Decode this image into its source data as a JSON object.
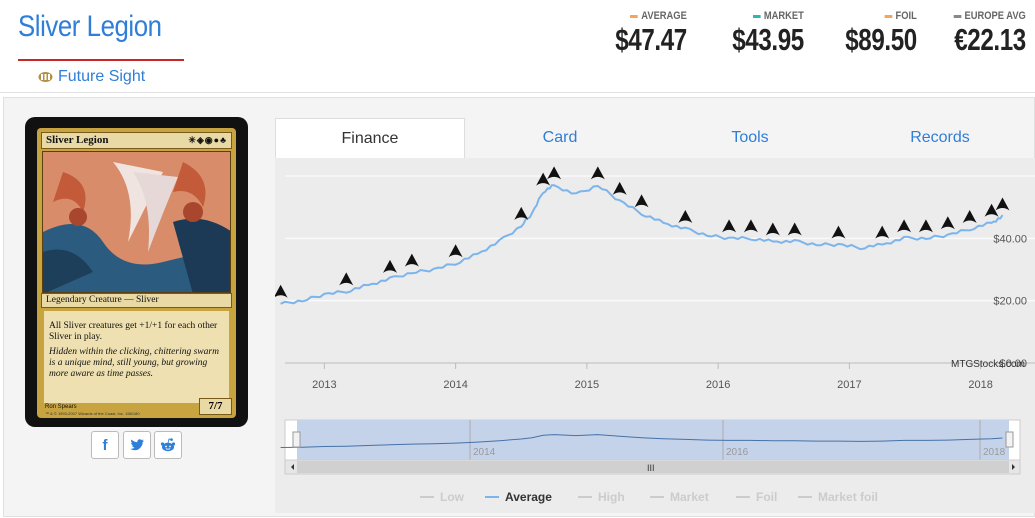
{
  "header": {
    "title": "Sliver Legion",
    "set_name": "Future Sight"
  },
  "prices": [
    {
      "label": "AVERAGE",
      "value": "$47.47",
      "color": "#f7a35c"
    },
    {
      "label": "MARKET",
      "value": "$43.95",
      "color": "#2ab7b7"
    },
    {
      "label": "FOIL",
      "value": "$89.50",
      "color": "#f7a35c"
    },
    {
      "label": "EUROPE AVG",
      "value": "€22.13",
      "color": "#888888"
    }
  ],
  "card": {
    "name": "Sliver Legion",
    "mana": "✳◈◉●♣",
    "type_line": "Legendary Creature — Sliver",
    "rules_text": "All Sliver creatures get +1/+1 for each other Sliver in play.",
    "flavor_text": "Hidden within the clicking, chittering swarm is a unique mind, still young, but growing more aware as time passes.",
    "pt": "7/7",
    "artist": "Ron Spears",
    "copyright": "™ & © 1993-2007 Wizards of the Coast, Inc. 158/180"
  },
  "social": {
    "facebook": "f",
    "twitter": "🐦",
    "reddit": "👽"
  },
  "tabs": [
    {
      "label": "Finance",
      "active": true
    },
    {
      "label": "Card",
      "active": false
    },
    {
      "label": "Tools",
      "active": false
    },
    {
      "label": "Records",
      "active": false
    }
  ],
  "chart_data": {
    "type": "line",
    "series": [
      {
        "name": "Average",
        "x": [
          "2012-09",
          "2012-11",
          "2013-01",
          "2013-03",
          "2013-05",
          "2013-07",
          "2013-09",
          "2013-11",
          "2014-01",
          "2014-03",
          "2014-05",
          "2014-07",
          "2014-08",
          "2014-09",
          "2014-10",
          "2014-12",
          "2015-02",
          "2015-04",
          "2015-06",
          "2015-08",
          "2015-10",
          "2015-12",
          "2016-02",
          "2016-04",
          "2016-06",
          "2016-08",
          "2016-10",
          "2016-12",
          "2017-02",
          "2017-04",
          "2017-06",
          "2017-08",
          "2017-10",
          "2017-12",
          "2018-02",
          "2018-03"
        ],
        "values": [
          19,
          20,
          22,
          23,
          25,
          27,
          29,
          30,
          32,
          35,
          39,
          44,
          48,
          55,
          57,
          54,
          57,
          52,
          48,
          45,
          43,
          41,
          40,
          40,
          39,
          39,
          38,
          38,
          37,
          38,
          40,
          40,
          41,
          43,
          45,
          47
        ]
      }
    ],
    "y_tick_labels": [
      "$40.00",
      "$20.00",
      "$0.00"
    ],
    "x_tick_labels": [
      "2013",
      "2014",
      "2015",
      "2016",
      "2017",
      "2018"
    ],
    "ylim": [
      0,
      60
    ],
    "credit": "MTGStocks.com",
    "navigator_labels": [
      "2014",
      "2016",
      "2018"
    ],
    "navigator_handle_label": "III",
    "legend": [
      {
        "label": "Low",
        "active": false
      },
      {
        "label": "Average",
        "active": true
      },
      {
        "label": "High",
        "active": false
      },
      {
        "label": "Market",
        "active": false
      },
      {
        "label": "Foil",
        "active": false
      },
      {
        "label": "Market foil",
        "active": false
      }
    ]
  }
}
